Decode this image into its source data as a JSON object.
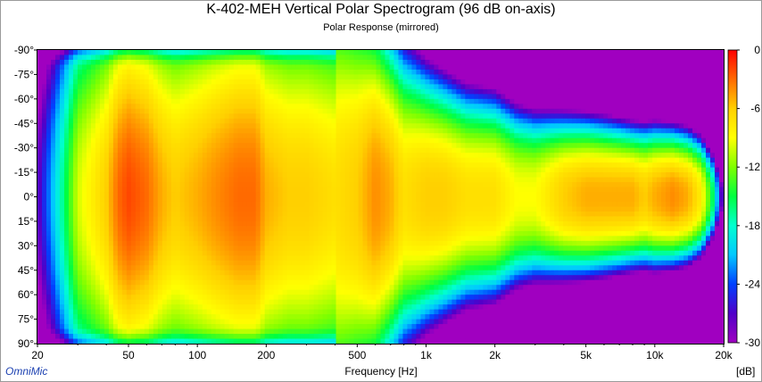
{
  "chart_data": {
    "type": "heatmap",
    "title": "K-402-MEH Vertical Polar Spectrogram (96 dB on-axis)",
    "subtitle": "Polar Response (mirrored)",
    "xlabel": "Frequency [Hz]",
    "xscale": "log",
    "xlim": [
      20,
      20000
    ],
    "x_ticks": [
      {
        "value": 20,
        "label": "20"
      },
      {
        "value": 50,
        "label": "50"
      },
      {
        "value": 100,
        "label": "100"
      },
      {
        "value": 200,
        "label": "200"
      },
      {
        "value": 500,
        "label": "500"
      },
      {
        "value": 1000,
        "label": "1k"
      },
      {
        "value": 2000,
        "label": "2k"
      },
      {
        "value": 5000,
        "label": "5k"
      },
      {
        "value": 10000,
        "label": "10k"
      },
      {
        "value": 20000,
        "label": "20k"
      }
    ],
    "ylim": [
      -90,
      90
    ],
    "y_ticks": [
      {
        "value": -90,
        "label": "-90°"
      },
      {
        "value": -75,
        "label": "-75°"
      },
      {
        "value": -60,
        "label": "-60°"
      },
      {
        "value": -45,
        "label": "-45°"
      },
      {
        "value": -30,
        "label": "-30°"
      },
      {
        "value": -15,
        "label": "-15°"
      },
      {
        "value": 0,
        "label": "0°"
      },
      {
        "value": 15,
        "label": "15°"
      },
      {
        "value": 30,
        "label": "30°"
      },
      {
        "value": 45,
        "label": "45°"
      },
      {
        "value": 60,
        "label": "60°"
      },
      {
        "value": 75,
        "label": "75°"
      },
      {
        "value": 90,
        "label": "90°"
      }
    ],
    "colorbar": {
      "unit": "[dB]",
      "range": [
        -30,
        0
      ],
      "ticks": [
        {
          "value": 0,
          "label": "0"
        },
        {
          "value": -6,
          "label": "-6"
        },
        {
          "value": -12,
          "label": "-12"
        },
        {
          "value": -18,
          "label": "-18"
        },
        {
          "value": -24,
          "label": "-24"
        },
        {
          "value": -30,
          "label": "-30"
        }
      ],
      "stops": [
        "#ff0000",
        "#ff6a00",
        "#ffd000",
        "#ffff00",
        "#7fff00",
        "#00ff40",
        "#00ffd0",
        "#00c8ff",
        "#0040ff",
        "#5000c8",
        "#a000c0"
      ]
    },
    "profile_frequencies": [
      20,
      25,
      30,
      40,
      45,
      50,
      60,
      70,
      80,
      100,
      120,
      150,
      180,
      200,
      250,
      300,
      400,
      500,
      600,
      700,
      800,
      1000,
      1200,
      1500,
      2000,
      2500,
      3000,
      4000,
      5000,
      6000,
      7000,
      8000,
      9000,
      10000,
      12000,
      14000,
      16000,
      18000,
      20000
    ],
    "onaxis_level_db": [
      -28,
      -18,
      -10,
      -6,
      -3,
      -2,
      -3,
      -5,
      -6,
      -5,
      -4,
      -3,
      -3,
      -5,
      -6,
      -6,
      -7,
      -6,
      -4,
      -5,
      -7,
      -6,
      -6,
      -7,
      -7,
      -9,
      -9,
      -6,
      -5,
      -5,
      -5,
      -5,
      -6,
      -5,
      -4,
      -5,
      -8,
      -16,
      -30
    ],
    "beamwidth_deg": [
      95,
      98,
      100,
      100,
      100,
      100,
      98,
      98,
      96,
      96,
      96,
      96,
      96,
      94,
      94,
      92,
      90,
      80,
      70,
      62,
      56,
      48,
      44,
      40,
      38,
      34,
      32,
      30,
      29,
      28,
      27,
      26,
      26,
      26,
      25,
      24,
      22,
      18,
      12
    ]
  },
  "footer": {
    "brand": "OmniMic"
  }
}
